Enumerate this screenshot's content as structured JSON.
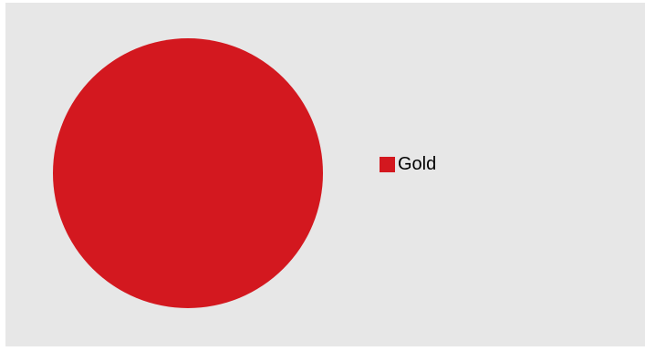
{
  "chart_data": {
    "type": "pie",
    "categories": [
      "Gold"
    ],
    "values": [
      100
    ],
    "colors": [
      "#d3181f"
    ],
    "background": "#e7e7e7",
    "legend": "right"
  }
}
